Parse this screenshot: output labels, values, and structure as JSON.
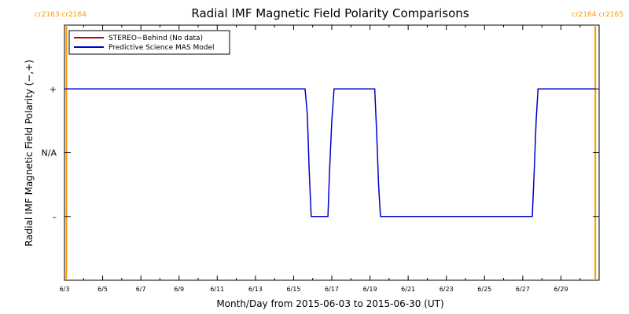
{
  "chart_data": {
    "type": "line",
    "title": "Radial IMF Magnetic Field Polarity Comparisons",
    "xlabel": "Month/Day from 2015-06-03 to 2015-06-30 (UT)",
    "ylabel": "Radial IMF Magnetic Field Polarity (−,+)",
    "x_tick_labels": [
      "6/3",
      "6/5",
      "6/7",
      "6/9",
      "6/11",
      "6/13",
      "6/15",
      "6/17",
      "6/19",
      "6/21",
      "6/23",
      "6/25",
      "6/27",
      "6/29"
    ],
    "x_tick_days": [
      3,
      5,
      7,
      9,
      11,
      13,
      15,
      17,
      19,
      21,
      23,
      25,
      27,
      29
    ],
    "xlim": [
      3,
      31
    ],
    "y_tick_labels": [
      "+",
      "N/A",
      "–"
    ],
    "y_tick_values": [
      1,
      0,
      -1
    ],
    "ylim": [
      -2,
      2
    ],
    "legend": {
      "position": "top-left",
      "entries": [
        {
          "label": "STEREO−Behind (No data)",
          "color": "#c00000"
        },
        {
          "label": "Predictive Science MAS Model",
          "color": "#0000cc"
        }
      ]
    },
    "series": [
      {
        "name": "Predictive Science MAS Model",
        "color": "#0000cc",
        "points": [
          [
            3.0,
            1
          ],
          [
            15.6,
            1
          ],
          [
            15.72,
            0.6
          ],
          [
            15.82,
            -0.3
          ],
          [
            15.92,
            -1
          ],
          [
            16.8,
            -1
          ],
          [
            16.88,
            -0.3
          ],
          [
            17.0,
            0.5
          ],
          [
            17.12,
            1
          ],
          [
            19.25,
            1
          ],
          [
            19.35,
            0.3
          ],
          [
            19.45,
            -0.5
          ],
          [
            19.55,
            -1
          ],
          [
            27.5,
            -1
          ],
          [
            27.6,
            -0.3
          ],
          [
            27.7,
            0.5
          ],
          [
            27.8,
            1
          ],
          [
            30.8,
            1
          ]
        ]
      }
    ],
    "carrington_markers": [
      {
        "labels": "cr2163  cr2164",
        "day": 3.1,
        "color": "#ff9900",
        "anchor": "left"
      },
      {
        "labels": "cr2164  cr2165",
        "day": 30.8,
        "color": "#ff9900",
        "anchor": "right"
      }
    ]
  }
}
